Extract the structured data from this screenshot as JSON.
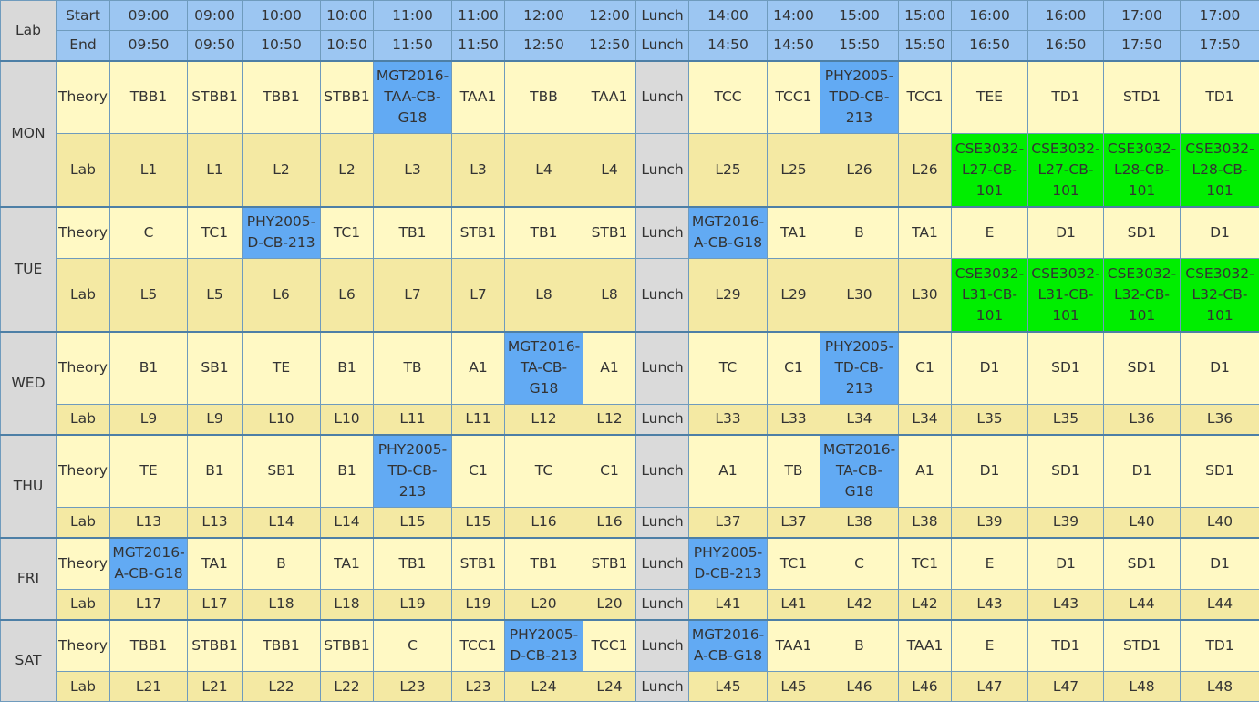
{
  "header": {
    "corner_label": "Lab",
    "start_label": "Start",
    "end_label": "End",
    "start_times": [
      "09:00",
      "09:00",
      "10:00",
      "10:00",
      "11:00",
      "11:00",
      "12:00",
      "12:00",
      "Lunch",
      "14:00",
      "14:00",
      "15:00",
      "15:00",
      "16:00",
      "16:00",
      "17:00",
      "17:00"
    ],
    "end_times": [
      "09:50",
      "09:50",
      "10:50",
      "10:50",
      "11:50",
      "11:50",
      "12:50",
      "12:50",
      "Lunch",
      "14:50",
      "14:50",
      "15:50",
      "15:50",
      "16:50",
      "16:50",
      "17:50",
      "17:50"
    ]
  },
  "type_labels": {
    "theory": "Theory",
    "lab": "Lab"
  },
  "days": [
    {
      "name": "MON",
      "theory": [
        {
          "text": "TBB1"
        },
        {
          "text": "STBB1"
        },
        {
          "text": "TBB1"
        },
        {
          "text": "STBB1"
        },
        {
          "text": "MGT2016-TAA-CB-G18",
          "selected": true
        },
        {
          "text": "TAA1"
        },
        {
          "text": "TBB"
        },
        {
          "text": "TAA1"
        },
        {
          "text": "Lunch",
          "lunch": true
        },
        {
          "text": "TCC"
        },
        {
          "text": "TCC1"
        },
        {
          "text": "PHY2005-TDD-CB-213",
          "selected": true
        },
        {
          "text": "TCC1"
        },
        {
          "text": "TEE"
        },
        {
          "text": "TD1"
        },
        {
          "text": "STD1"
        },
        {
          "text": "TD1"
        }
      ],
      "lab": [
        {
          "text": "L1"
        },
        {
          "text": "L1"
        },
        {
          "text": "L2"
        },
        {
          "text": "L2"
        },
        {
          "text": "L3"
        },
        {
          "text": "L3"
        },
        {
          "text": "L4"
        },
        {
          "text": "L4"
        },
        {
          "text": "Lunch",
          "lunch": true
        },
        {
          "text": "L25"
        },
        {
          "text": "L25"
        },
        {
          "text": "L26"
        },
        {
          "text": "L26"
        },
        {
          "text": "CSE3032-L27-CB-101",
          "selected": true
        },
        {
          "text": "CSE3032-L27-CB-101",
          "selected": true
        },
        {
          "text": "CSE3032-L28-CB-101",
          "selected": true
        },
        {
          "text": "CSE3032-L28-CB-101",
          "selected": true
        }
      ]
    },
    {
      "name": "TUE",
      "theory": [
        {
          "text": "C"
        },
        {
          "text": "TC1"
        },
        {
          "text": "PHY2005-D-CB-213",
          "selected": true
        },
        {
          "text": "TC1"
        },
        {
          "text": "TB1"
        },
        {
          "text": "STB1"
        },
        {
          "text": "TB1"
        },
        {
          "text": "STB1"
        },
        {
          "text": "Lunch",
          "lunch": true
        },
        {
          "text": "MGT2016-A-CB-G18",
          "selected": true
        },
        {
          "text": "TA1"
        },
        {
          "text": "B"
        },
        {
          "text": "TA1"
        },
        {
          "text": "E"
        },
        {
          "text": "D1"
        },
        {
          "text": "SD1"
        },
        {
          "text": "D1"
        }
      ],
      "lab": [
        {
          "text": "L5"
        },
        {
          "text": "L5"
        },
        {
          "text": "L6"
        },
        {
          "text": "L6"
        },
        {
          "text": "L7"
        },
        {
          "text": "L7"
        },
        {
          "text": "L8"
        },
        {
          "text": "L8"
        },
        {
          "text": "Lunch",
          "lunch": true
        },
        {
          "text": "L29"
        },
        {
          "text": "L29"
        },
        {
          "text": "L30"
        },
        {
          "text": "L30"
        },
        {
          "text": "CSE3032-L31-CB-101",
          "selected": true
        },
        {
          "text": "CSE3032-L31-CB-101",
          "selected": true
        },
        {
          "text": "CSE3032-L32-CB-101",
          "selected": true
        },
        {
          "text": "CSE3032-L32-CB-101",
          "selected": true
        }
      ]
    },
    {
      "name": "WED",
      "theory": [
        {
          "text": "B1"
        },
        {
          "text": "SB1"
        },
        {
          "text": "TE"
        },
        {
          "text": "B1"
        },
        {
          "text": "TB"
        },
        {
          "text": "A1"
        },
        {
          "text": "MGT2016-TA-CB-G18",
          "selected": true
        },
        {
          "text": "A1"
        },
        {
          "text": "Lunch",
          "lunch": true
        },
        {
          "text": "TC"
        },
        {
          "text": "C1"
        },
        {
          "text": "PHY2005-TD-CB-213",
          "selected": true
        },
        {
          "text": "C1"
        },
        {
          "text": "D1"
        },
        {
          "text": "SD1"
        },
        {
          "text": "SD1"
        },
        {
          "text": "D1"
        }
      ],
      "lab": [
        {
          "text": "L9"
        },
        {
          "text": "L9"
        },
        {
          "text": "L10"
        },
        {
          "text": "L10"
        },
        {
          "text": "L11"
        },
        {
          "text": "L11"
        },
        {
          "text": "L12"
        },
        {
          "text": "L12"
        },
        {
          "text": "Lunch",
          "lunch": true
        },
        {
          "text": "L33"
        },
        {
          "text": "L33"
        },
        {
          "text": "L34"
        },
        {
          "text": "L34"
        },
        {
          "text": "L35"
        },
        {
          "text": "L35"
        },
        {
          "text": "L36"
        },
        {
          "text": "L36"
        }
      ]
    },
    {
      "name": "THU",
      "theory": [
        {
          "text": "TE"
        },
        {
          "text": "B1"
        },
        {
          "text": "SB1"
        },
        {
          "text": "B1"
        },
        {
          "text": "PHY2005-TD-CB-213",
          "selected": true
        },
        {
          "text": "C1"
        },
        {
          "text": "TC"
        },
        {
          "text": "C1"
        },
        {
          "text": "Lunch",
          "lunch": true
        },
        {
          "text": "A1"
        },
        {
          "text": "TB"
        },
        {
          "text": "MGT2016-TA-CB-G18",
          "selected": true
        },
        {
          "text": "A1"
        },
        {
          "text": "D1"
        },
        {
          "text": "SD1"
        },
        {
          "text": "D1"
        },
        {
          "text": "SD1"
        }
      ],
      "lab": [
        {
          "text": "L13"
        },
        {
          "text": "L13"
        },
        {
          "text": "L14"
        },
        {
          "text": "L14"
        },
        {
          "text": "L15"
        },
        {
          "text": "L15"
        },
        {
          "text": "L16"
        },
        {
          "text": "L16"
        },
        {
          "text": "Lunch",
          "lunch": true
        },
        {
          "text": "L37"
        },
        {
          "text": "L37"
        },
        {
          "text": "L38"
        },
        {
          "text": "L38"
        },
        {
          "text": "L39"
        },
        {
          "text": "L39"
        },
        {
          "text": "L40"
        },
        {
          "text": "L40"
        }
      ]
    },
    {
      "name": "FRI",
      "theory": [
        {
          "text": "MGT2016-A-CB-G18",
          "selected": true
        },
        {
          "text": "TA1"
        },
        {
          "text": "B"
        },
        {
          "text": "TA1"
        },
        {
          "text": "TB1"
        },
        {
          "text": "STB1"
        },
        {
          "text": "TB1"
        },
        {
          "text": "STB1"
        },
        {
          "text": "Lunch",
          "lunch": true
        },
        {
          "text": "PHY2005-D-CB-213",
          "selected": true
        },
        {
          "text": "TC1"
        },
        {
          "text": "C"
        },
        {
          "text": "TC1"
        },
        {
          "text": "E"
        },
        {
          "text": "D1"
        },
        {
          "text": "SD1"
        },
        {
          "text": "D1"
        }
      ],
      "lab": [
        {
          "text": "L17"
        },
        {
          "text": "L17"
        },
        {
          "text": "L18"
        },
        {
          "text": "L18"
        },
        {
          "text": "L19"
        },
        {
          "text": "L19"
        },
        {
          "text": "L20"
        },
        {
          "text": "L20"
        },
        {
          "text": "Lunch",
          "lunch": true
        },
        {
          "text": "L41"
        },
        {
          "text": "L41"
        },
        {
          "text": "L42"
        },
        {
          "text": "L42"
        },
        {
          "text": "L43"
        },
        {
          "text": "L43"
        },
        {
          "text": "L44"
        },
        {
          "text": "L44"
        }
      ]
    },
    {
      "name": "SAT",
      "theory": [
        {
          "text": "TBB1"
        },
        {
          "text": "STBB1"
        },
        {
          "text": "TBB1"
        },
        {
          "text": "STBB1"
        },
        {
          "text": "C"
        },
        {
          "text": "TCC1"
        },
        {
          "text": "PHY2005-D-CB-213",
          "selected": true
        },
        {
          "text": "TCC1"
        },
        {
          "text": "Lunch",
          "lunch": true
        },
        {
          "text": "MGT2016-A-CB-G18",
          "selected": true
        },
        {
          "text": "TAA1"
        },
        {
          "text": "B"
        },
        {
          "text": "TAA1"
        },
        {
          "text": "E"
        },
        {
          "text": "TD1"
        },
        {
          "text": "STD1"
        },
        {
          "text": "TD1"
        }
      ],
      "lab": [
        {
          "text": "L21"
        },
        {
          "text": "L21"
        },
        {
          "text": "L22"
        },
        {
          "text": "L22"
        },
        {
          "text": "L23"
        },
        {
          "text": "L23"
        },
        {
          "text": "L24"
        },
        {
          "text": "L24"
        },
        {
          "text": "Lunch",
          "lunch": true
        },
        {
          "text": "L45"
        },
        {
          "text": "L45"
        },
        {
          "text": "L46"
        },
        {
          "text": "L46"
        },
        {
          "text": "L47"
        },
        {
          "text": "L47"
        },
        {
          "text": "L48"
        },
        {
          "text": "L48"
        }
      ]
    }
  ],
  "colors": {
    "header": "#9cc6f2",
    "theory_cell": "#fff9c4",
    "lab_cell": "#f4e9a3",
    "lunch": "#dadada",
    "selected_theory": "#62aaf3",
    "selected_lab": "#00ee00",
    "label_gray": "#d9d9d9"
  }
}
